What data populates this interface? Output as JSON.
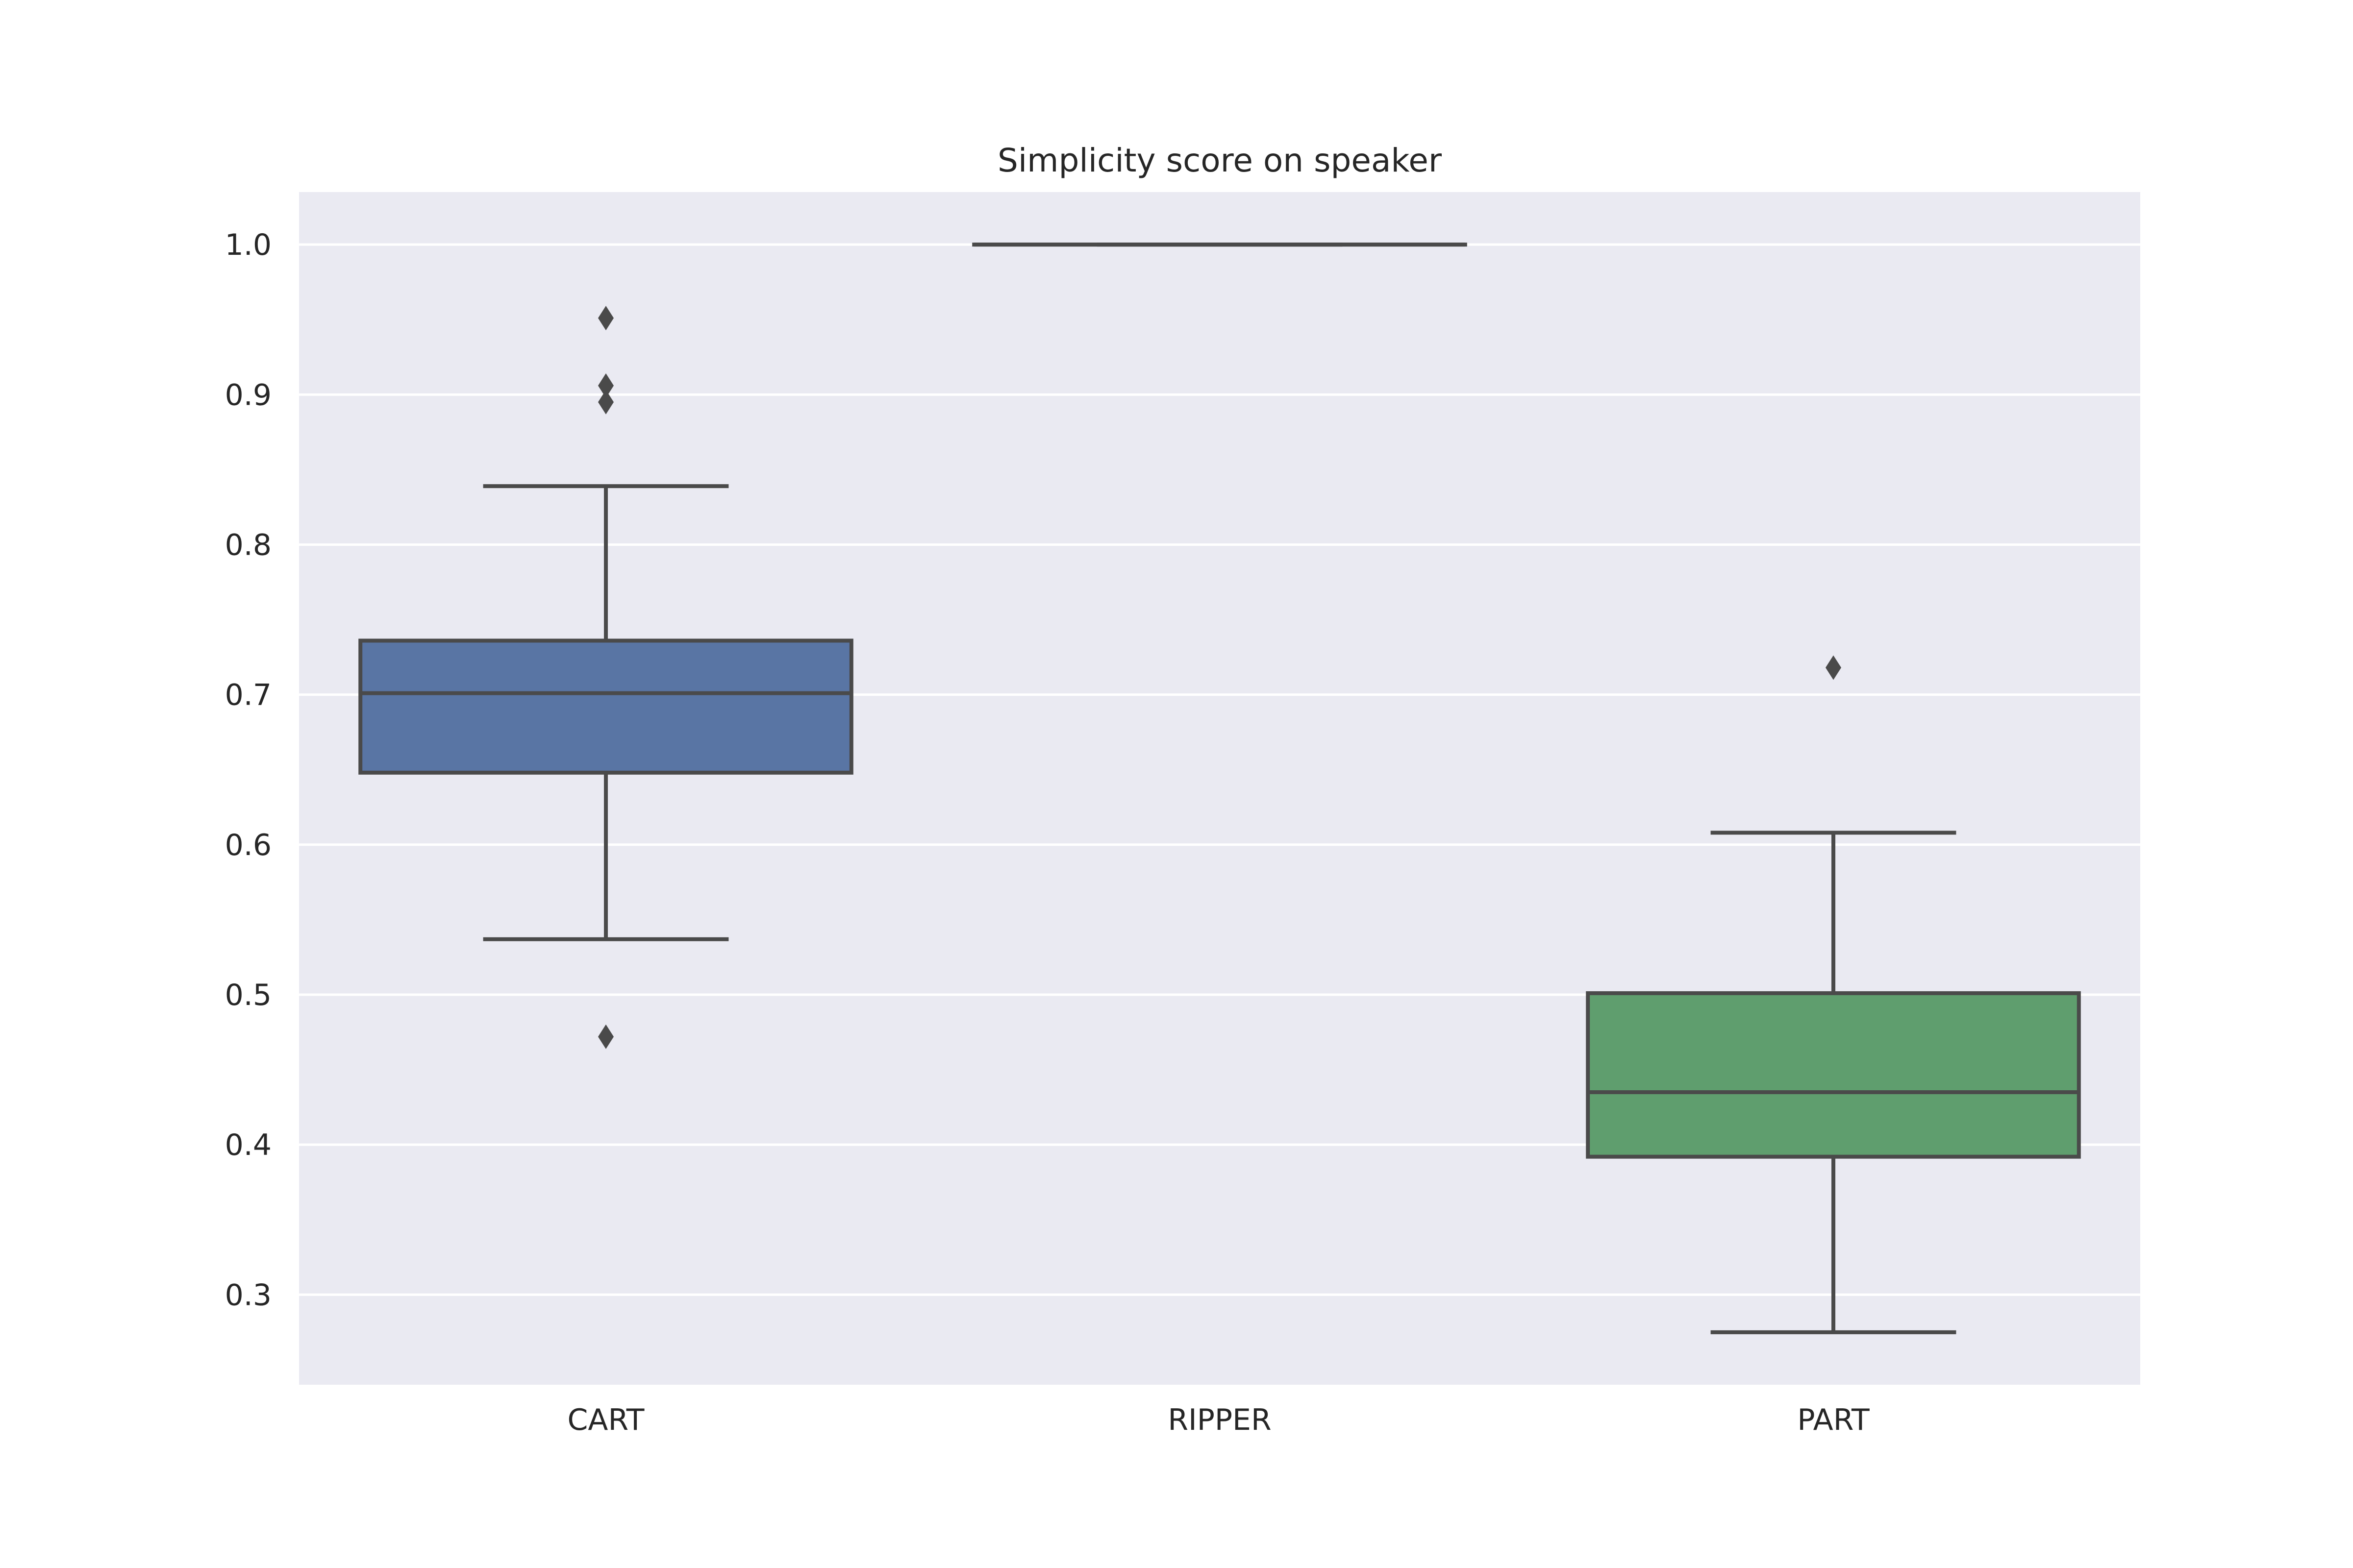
{
  "chart_data": {
    "type": "box",
    "title": "Simplicity score on speaker",
    "xlabel": "",
    "ylabel": "",
    "categories": [
      "CART",
      "RIPPER",
      "PART"
    ],
    "ylim": [
      0.24,
      1.035
    ],
    "yticks": [
      0.3,
      0.4,
      0.5,
      0.6,
      0.7,
      0.8,
      0.9,
      1.0
    ],
    "ytick_labels": [
      "0.3",
      "0.4",
      "0.5",
      "0.6",
      "0.7",
      "0.8",
      "0.9",
      "1.0"
    ],
    "grid": true,
    "background": "#eaeaf2",
    "boxes": [
      {
        "category": "CART",
        "whisker_low": 0.537,
        "q1": 0.648,
        "median": 0.701,
        "q3": 0.736,
        "whisker_high": 0.839,
        "outliers": [
          0.472,
          0.895,
          0.906,
          0.951
        ],
        "color": "#5975a4"
      },
      {
        "category": "RIPPER",
        "whisker_low": 1.0,
        "q1": 1.0,
        "median": 1.0,
        "q3": 1.0,
        "whisker_high": 1.0,
        "outliers": [],
        "color": "#cc8963"
      },
      {
        "category": "PART",
        "whisker_low": 0.275,
        "q1": 0.392,
        "median": 0.435,
        "q3": 0.501,
        "whisker_high": 0.608,
        "outliers": [
          0.718
        ],
        "color": "#5f9e6e"
      }
    ],
    "line_color": "#4a4a4a"
  }
}
